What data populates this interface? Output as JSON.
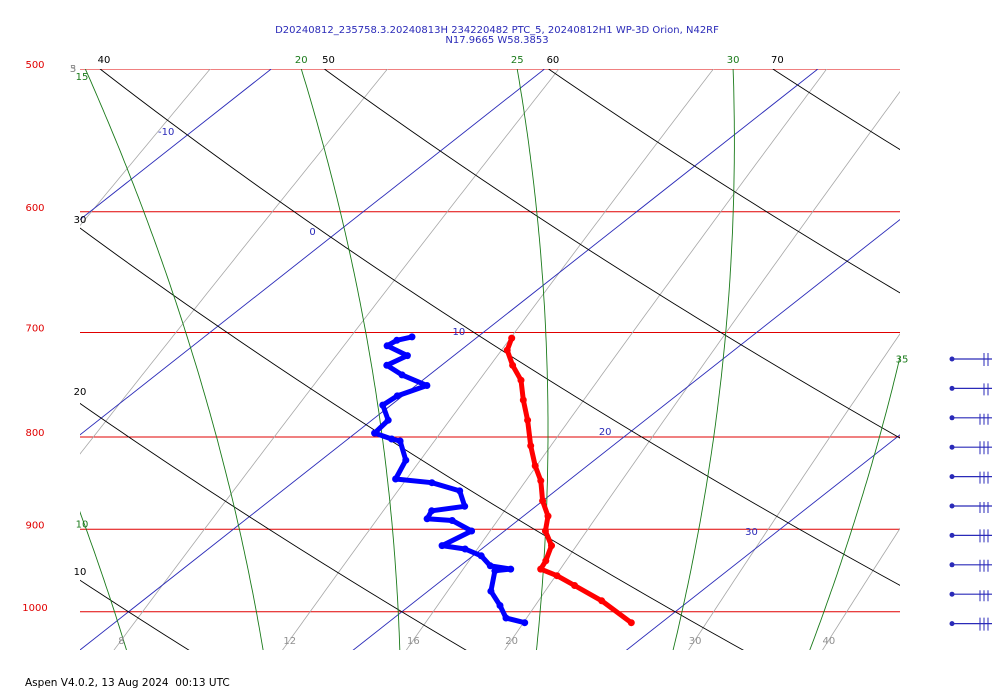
{
  "chart_data": {
    "type": "skewt",
    "title": "D20240812_235758.3.20240813H 234220482 PTC_5, 20240812H1 WP-3D Orion, N42RF",
    "subtitle": "N17.9665 W58.3853",
    "footer": "Aspen V4.0.2, 13 Aug 2024  00:13 UTC",
    "log_y": true,
    "ylim": [
      500,
      1050
    ],
    "yticks": [
      500,
      600,
      700,
      800,
      900,
      1000
    ],
    "xlim": [
      10,
      40
    ],
    "isotherms": [
      -10,
      0,
      10,
      20,
      30
    ],
    "dry_adiabats": [
      40,
      50,
      60,
      70,
      30,
      20,
      10
    ],
    "moist_adiabats": [
      15,
      20,
      25,
      30,
      35,
      10
    ],
    "mixing_ratios": [
      3,
      5,
      8,
      12,
      16,
      20,
      30,
      40
    ],
    "series": [
      {
        "color": "#ff0000",
        "pressure": [
          1014,
          986,
          967,
          955,
          947,
          937,
          919,
          902,
          885,
          868,
          846,
          830,
          809,
          783,
          763,
          744,
          730,
          716,
          705
        ],
        "values": [
          28.9,
          26.8,
          25.1,
          24.0,
          23.1,
          22.9,
          22.4,
          21.5,
          20.9,
          20.0,
          19.0,
          18.1,
          17.0,
          15.7,
          14.6,
          13.6,
          12.6,
          11.7,
          11.3
        ]
      },
      {
        "color": "#0000ff",
        "pressure": [
          1014,
          1008,
          992,
          974,
          949,
          947,
          943,
          931,
          923,
          919,
          902,
          890,
          888,
          879,
          874,
          857,
          848,
          844,
          824,
          804,
          802,
          796,
          783,
          768,
          759,
          749,
          739,
          730,
          721,
          712,
          707,
          704
        ],
        "values": [
          25.0,
          24.1,
          23.3,
          22.3,
          21.5,
          22.0,
          21.1,
          20.3,
          19.4,
          18.4,
          18.8,
          17.6,
          16.6,
          16.4,
          17.4,
          16.5,
          15.1,
          13.6,
          13.1,
          12.0,
          11.6,
          10.7,
          10.6,
          9.7,
          9.8,
          10.4,
          9.0,
          8.0,
          8.3,
          7.1,
          7.2,
          7.6
        ]
      }
    ]
  }
}
